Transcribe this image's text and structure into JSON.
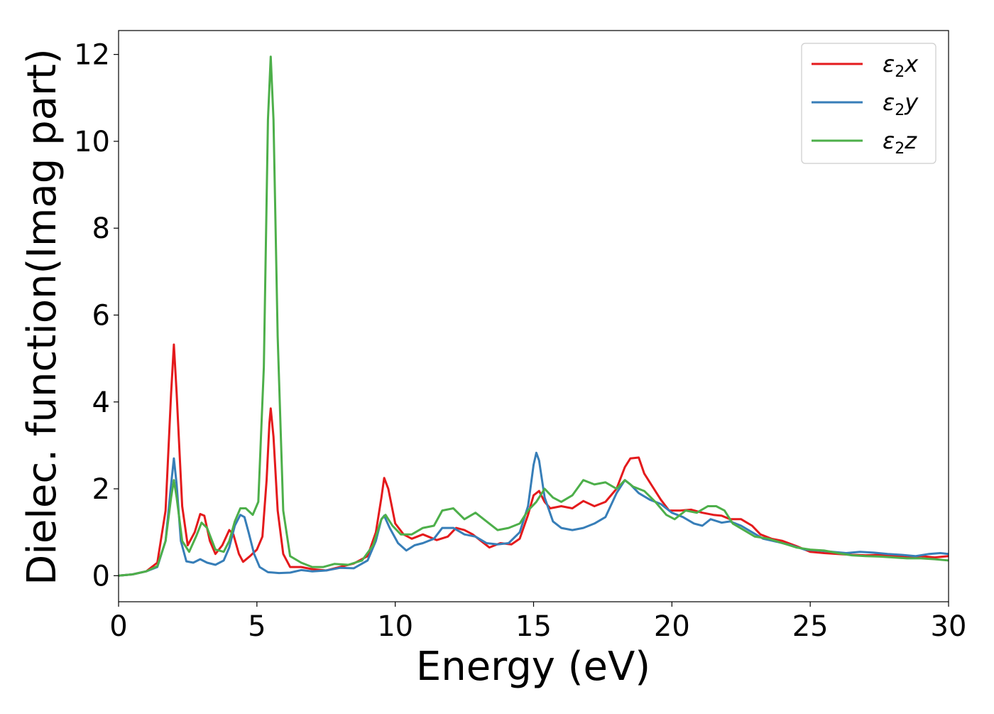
{
  "chart_data": {
    "type": "line",
    "xlabel": "Energy (eV)",
    "ylabel": "Dielec. function(Imag part)",
    "xlim": [
      0,
      30
    ],
    "ylim": [
      -0.6,
      12.55
    ],
    "xticks": [
      0,
      5,
      10,
      15,
      20,
      25,
      30
    ],
    "yticks": [
      0,
      2,
      4,
      6,
      8,
      10,
      12
    ],
    "x_tick_labels": [
      "0",
      "5",
      "10",
      "15",
      "20",
      "25",
      "30"
    ],
    "y_tick_labels": [
      "0",
      "2",
      "4",
      "6",
      "8",
      "10",
      "12"
    ],
    "grid": false,
    "legend_position": "top-right",
    "series": [
      {
        "name": "ε₂x",
        "name_base": "ε",
        "name_sub": "2",
        "name_suffix": "x",
        "color": "#e41a1c",
        "points": [
          [
            0,
            0
          ],
          [
            0.5,
            0.03
          ],
          [
            1.0,
            0.1
          ],
          [
            1.4,
            0.3
          ],
          [
            1.7,
            1.5
          ],
          [
            1.9,
            4.2
          ],
          [
            2.0,
            5.32
          ],
          [
            2.1,
            4.2
          ],
          [
            2.3,
            1.6
          ],
          [
            2.5,
            0.7
          ],
          [
            2.75,
            1.0
          ],
          [
            2.95,
            1.42
          ],
          [
            3.1,
            1.38
          ],
          [
            3.3,
            0.8
          ],
          [
            3.5,
            0.5
          ],
          [
            3.75,
            0.7
          ],
          [
            4.0,
            1.05
          ],
          [
            4.15,
            0.95
          ],
          [
            4.35,
            0.5
          ],
          [
            4.5,
            0.32
          ],
          [
            4.75,
            0.45
          ],
          [
            5.0,
            0.6
          ],
          [
            5.2,
            0.9
          ],
          [
            5.35,
            2.2
          ],
          [
            5.45,
            3.5
          ],
          [
            5.5,
            3.85
          ],
          [
            5.6,
            3.2
          ],
          [
            5.75,
            1.5
          ],
          [
            5.95,
            0.5
          ],
          [
            6.2,
            0.2
          ],
          [
            6.6,
            0.2
          ],
          [
            7.0,
            0.15
          ],
          [
            7.5,
            0.12
          ],
          [
            8.0,
            0.2
          ],
          [
            8.5,
            0.28
          ],
          [
            9.0,
            0.45
          ],
          [
            9.3,
            1.0
          ],
          [
            9.5,
            1.8
          ],
          [
            9.6,
            2.25
          ],
          [
            9.75,
            2.0
          ],
          [
            10.0,
            1.2
          ],
          [
            10.3,
            0.95
          ],
          [
            10.6,
            0.85
          ],
          [
            11.0,
            0.95
          ],
          [
            11.5,
            0.82
          ],
          [
            11.9,
            0.9
          ],
          [
            12.2,
            1.1
          ],
          [
            12.5,
            1.05
          ],
          [
            12.8,
            0.95
          ],
          [
            13.1,
            0.8
          ],
          [
            13.4,
            0.65
          ],
          [
            13.8,
            0.75
          ],
          [
            14.2,
            0.72
          ],
          [
            14.5,
            0.85
          ],
          [
            14.8,
            1.4
          ],
          [
            15.0,
            1.85
          ],
          [
            15.2,
            1.95
          ],
          [
            15.4,
            1.7
          ],
          [
            15.6,
            1.55
          ],
          [
            16.0,
            1.6
          ],
          [
            16.4,
            1.55
          ],
          [
            16.8,
            1.72
          ],
          [
            17.2,
            1.6
          ],
          [
            17.6,
            1.7
          ],
          [
            18.0,
            2.0
          ],
          [
            18.3,
            2.5
          ],
          [
            18.5,
            2.7
          ],
          [
            18.8,
            2.72
          ],
          [
            19.0,
            2.35
          ],
          [
            19.3,
            2.05
          ],
          [
            19.6,
            1.75
          ],
          [
            19.9,
            1.5
          ],
          [
            20.3,
            1.5
          ],
          [
            20.7,
            1.52
          ],
          [
            21.1,
            1.45
          ],
          [
            21.5,
            1.4
          ],
          [
            21.8,
            1.38
          ],
          [
            22.1,
            1.3
          ],
          [
            22.5,
            1.3
          ],
          [
            22.9,
            1.15
          ],
          [
            23.2,
            0.95
          ],
          [
            23.6,
            0.85
          ],
          [
            24.0,
            0.8
          ],
          [
            24.5,
            0.68
          ],
          [
            25.0,
            0.55
          ],
          [
            25.5,
            0.52
          ],
          [
            26.0,
            0.5
          ],
          [
            26.5,
            0.48
          ],
          [
            27.0,
            0.47
          ],
          [
            27.5,
            0.48
          ],
          [
            28.0,
            0.46
          ],
          [
            28.5,
            0.42
          ],
          [
            29.0,
            0.45
          ],
          [
            29.5,
            0.42
          ],
          [
            30.0,
            0.45
          ]
        ]
      },
      {
        "name": "ε₂y",
        "name_base": "ε",
        "name_sub": "2",
        "name_suffix": "y",
        "color": "#377eb8",
        "points": [
          [
            0,
            0
          ],
          [
            0.5,
            0.03
          ],
          [
            1.0,
            0.1
          ],
          [
            1.4,
            0.2
          ],
          [
            1.7,
            0.8
          ],
          [
            1.9,
            2.1
          ],
          [
            2.0,
            2.7
          ],
          [
            2.1,
            2.1
          ],
          [
            2.25,
            0.8
          ],
          [
            2.45,
            0.33
          ],
          [
            2.7,
            0.3
          ],
          [
            2.95,
            0.38
          ],
          [
            3.2,
            0.3
          ],
          [
            3.5,
            0.25
          ],
          [
            3.8,
            0.35
          ],
          [
            4.0,
            0.65
          ],
          [
            4.2,
            1.15
          ],
          [
            4.4,
            1.4
          ],
          [
            4.55,
            1.35
          ],
          [
            4.7,
            1.0
          ],
          [
            4.9,
            0.5
          ],
          [
            5.1,
            0.2
          ],
          [
            5.4,
            0.08
          ],
          [
            5.8,
            0.06
          ],
          [
            6.2,
            0.07
          ],
          [
            6.6,
            0.13
          ],
          [
            7.0,
            0.1
          ],
          [
            7.5,
            0.12
          ],
          [
            8.0,
            0.18
          ],
          [
            8.5,
            0.17
          ],
          [
            9.0,
            0.35
          ],
          [
            9.3,
            0.8
          ],
          [
            9.5,
            1.3
          ],
          [
            9.6,
            1.38
          ],
          [
            9.8,
            1.1
          ],
          [
            10.1,
            0.75
          ],
          [
            10.4,
            0.58
          ],
          [
            10.7,
            0.7
          ],
          [
            11.0,
            0.75
          ],
          [
            11.4,
            0.85
          ],
          [
            11.7,
            1.1
          ],
          [
            12.1,
            1.1
          ],
          [
            12.5,
            0.95
          ],
          [
            12.9,
            0.9
          ],
          [
            13.3,
            0.75
          ],
          [
            13.7,
            0.72
          ],
          [
            14.1,
            0.75
          ],
          [
            14.5,
            1.0
          ],
          [
            14.8,
            1.6
          ],
          [
            15.0,
            2.55
          ],
          [
            15.1,
            2.83
          ],
          [
            15.2,
            2.65
          ],
          [
            15.4,
            1.8
          ],
          [
            15.7,
            1.25
          ],
          [
            16.0,
            1.1
          ],
          [
            16.4,
            1.05
          ],
          [
            16.8,
            1.1
          ],
          [
            17.2,
            1.2
          ],
          [
            17.6,
            1.35
          ],
          [
            18.0,
            1.9
          ],
          [
            18.3,
            2.2
          ],
          [
            18.5,
            2.1
          ],
          [
            18.8,
            1.9
          ],
          [
            19.2,
            1.75
          ],
          [
            19.6,
            1.65
          ],
          [
            20.0,
            1.45
          ],
          [
            20.4,
            1.35
          ],
          [
            20.8,
            1.2
          ],
          [
            21.1,
            1.15
          ],
          [
            21.4,
            1.3
          ],
          [
            21.8,
            1.22
          ],
          [
            22.1,
            1.25
          ],
          [
            22.5,
            1.15
          ],
          [
            22.9,
            1.0
          ],
          [
            23.3,
            0.85
          ],
          [
            23.8,
            0.78
          ],
          [
            24.3,
            0.7
          ],
          [
            24.8,
            0.6
          ],
          [
            25.3,
            0.58
          ],
          [
            25.8,
            0.55
          ],
          [
            26.3,
            0.52
          ],
          [
            26.8,
            0.55
          ],
          [
            27.3,
            0.53
          ],
          [
            27.8,
            0.5
          ],
          [
            28.3,
            0.48
          ],
          [
            28.8,
            0.45
          ],
          [
            29.3,
            0.5
          ],
          [
            29.7,
            0.52
          ],
          [
            30.0,
            0.5
          ]
        ]
      },
      {
        "name": "ε₂z",
        "name_base": "ε",
        "name_sub": "2",
        "name_suffix": "z",
        "color": "#4daf4a",
        "points": [
          [
            0,
            0
          ],
          [
            0.5,
            0.03
          ],
          [
            1.0,
            0.1
          ],
          [
            1.4,
            0.22
          ],
          [
            1.7,
            0.8
          ],
          [
            1.9,
            1.8
          ],
          [
            2.0,
            2.2
          ],
          [
            2.1,
            1.8
          ],
          [
            2.3,
            0.8
          ],
          [
            2.55,
            0.55
          ],
          [
            2.8,
            0.9
          ],
          [
            3.0,
            1.22
          ],
          [
            3.2,
            1.1
          ],
          [
            3.5,
            0.6
          ],
          [
            3.8,
            0.55
          ],
          [
            4.0,
            0.8
          ],
          [
            4.2,
            1.25
          ],
          [
            4.4,
            1.55
          ],
          [
            4.6,
            1.55
          ],
          [
            4.85,
            1.4
          ],
          [
            5.05,
            1.7
          ],
          [
            5.25,
            4.8
          ],
          [
            5.4,
            10.5
          ],
          [
            5.5,
            11.95
          ],
          [
            5.6,
            10.5
          ],
          [
            5.75,
            5.5
          ],
          [
            5.95,
            1.5
          ],
          [
            6.2,
            0.45
          ],
          [
            6.6,
            0.3
          ],
          [
            7.0,
            0.2
          ],
          [
            7.4,
            0.2
          ],
          [
            7.8,
            0.27
          ],
          [
            8.3,
            0.25
          ],
          [
            8.8,
            0.35
          ],
          [
            9.2,
            0.7
          ],
          [
            9.5,
            1.3
          ],
          [
            9.65,
            1.4
          ],
          [
            9.9,
            1.15
          ],
          [
            10.2,
            0.95
          ],
          [
            10.6,
            0.95
          ],
          [
            11.0,
            1.1
          ],
          [
            11.4,
            1.15
          ],
          [
            11.7,
            1.5
          ],
          [
            12.1,
            1.55
          ],
          [
            12.5,
            1.3
          ],
          [
            12.9,
            1.45
          ],
          [
            13.3,
            1.25
          ],
          [
            13.7,
            1.05
          ],
          [
            14.1,
            1.1
          ],
          [
            14.5,
            1.2
          ],
          [
            14.8,
            1.5
          ],
          [
            15.1,
            1.7
          ],
          [
            15.4,
            2.0
          ],
          [
            15.7,
            1.8
          ],
          [
            16.0,
            1.7
          ],
          [
            16.4,
            1.85
          ],
          [
            16.8,
            2.2
          ],
          [
            17.2,
            2.1
          ],
          [
            17.6,
            2.15
          ],
          [
            18.0,
            2.0
          ],
          [
            18.3,
            2.2
          ],
          [
            18.6,
            2.05
          ],
          [
            19.0,
            1.95
          ],
          [
            19.4,
            1.7
          ],
          [
            19.8,
            1.4
          ],
          [
            20.1,
            1.3
          ],
          [
            20.5,
            1.5
          ],
          [
            20.9,
            1.45
          ],
          [
            21.3,
            1.6
          ],
          [
            21.6,
            1.6
          ],
          [
            21.9,
            1.5
          ],
          [
            22.2,
            1.2
          ],
          [
            22.6,
            1.05
          ],
          [
            23.0,
            0.9
          ],
          [
            23.5,
            0.85
          ],
          [
            24.0,
            0.75
          ],
          [
            24.5,
            0.65
          ],
          [
            25.0,
            0.6
          ],
          [
            25.5,
            0.58
          ],
          [
            26.0,
            0.52
          ],
          [
            26.5,
            0.47
          ],
          [
            27.0,
            0.45
          ],
          [
            27.5,
            0.44
          ],
          [
            28.0,
            0.42
          ],
          [
            28.5,
            0.4
          ],
          [
            29.0,
            0.4
          ],
          [
            29.5,
            0.38
          ],
          [
            30.0,
            0.35
          ]
        ]
      }
    ]
  }
}
